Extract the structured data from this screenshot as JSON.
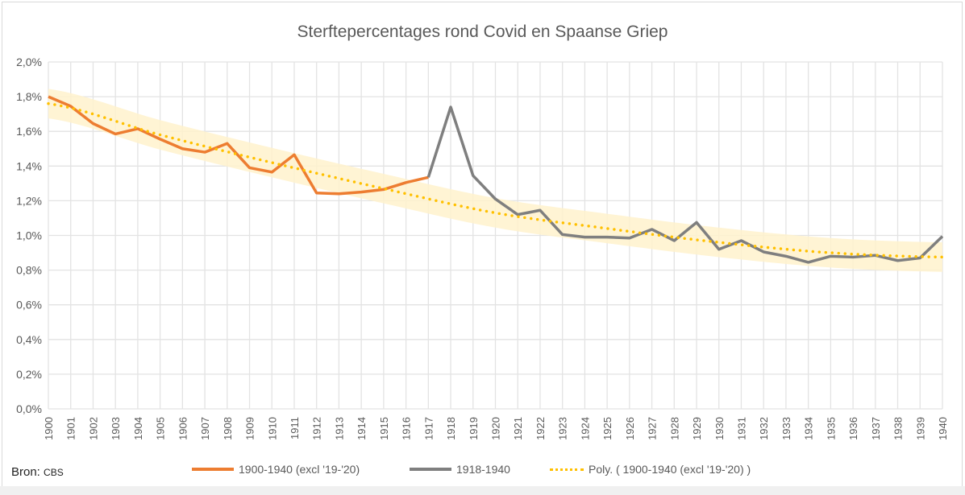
{
  "chart_data": {
    "type": "line",
    "title": "Sterftepercentages rond Covid en Spaanse Griep",
    "xlabel": "",
    "ylabel": "",
    "ylim": [
      0,
      2.0
    ],
    "yticks": [
      "0,0%",
      "0,2%",
      "0,4%",
      "0,6%",
      "0,8%",
      "1,0%",
      "1,2%",
      "1,4%",
      "1,6%",
      "1,8%",
      "2,0%"
    ],
    "x": [
      1900,
      1901,
      1902,
      1903,
      1904,
      1905,
      1906,
      1907,
      1908,
      1909,
      1910,
      1911,
      1912,
      1913,
      1914,
      1915,
      1916,
      1917,
      1918,
      1919,
      1920,
      1921,
      1922,
      1923,
      1924,
      1925,
      1926,
      1927,
      1928,
      1929,
      1930,
      1931,
      1932,
      1933,
      1934,
      1935,
      1936,
      1937,
      1938,
      1939,
      1940
    ],
    "grid": true,
    "legend_position": "bottom",
    "series": [
      {
        "name": "1900-1940 (excl '19-'20)",
        "color": "#ED7D31",
        "x": [
          1900,
          1901,
          1902,
          1903,
          1904,
          1905,
          1906,
          1907,
          1908,
          1909,
          1910,
          1911,
          1912,
          1913,
          1914,
          1915,
          1916,
          1917
        ],
        "values": [
          1.8,
          1.745,
          1.645,
          1.585,
          1.615,
          1.555,
          1.5,
          1.48,
          1.53,
          1.39,
          1.365,
          1.465,
          1.245,
          1.24,
          1.25,
          1.265,
          1.305,
          1.335
        ]
      },
      {
        "name": "1918-1940",
        "color": "#7F7F7F",
        "x": [
          1917,
          1918,
          1919,
          1920,
          1921,
          1922,
          1923,
          1924,
          1925,
          1926,
          1927,
          1928,
          1929,
          1930,
          1931,
          1932,
          1933,
          1934,
          1935,
          1936,
          1937,
          1938,
          1939,
          1940
        ],
        "values": [
          1.335,
          1.74,
          1.345,
          1.21,
          1.12,
          1.145,
          1.005,
          0.99,
          0.99,
          0.985,
          1.035,
          0.97,
          1.075,
          0.92,
          0.97,
          0.905,
          0.88,
          0.845,
          0.88,
          0.875,
          0.885,
          0.855,
          0.87,
          0.995
        ]
      },
      {
        "name": "Poly. ( 1900-1940 (excl '19-'20) )",
        "color": "#FFC000",
        "style": "dotted",
        "band_color": "#FFF2CC",
        "x": [
          1900,
          1905,
          1910,
          1915,
          1920,
          1925,
          1930,
          1935,
          1940
        ],
        "values": [
          1.76,
          1.58,
          1.42,
          1.27,
          1.13,
          1.04,
          0.96,
          0.9,
          0.875
        ]
      }
    ]
  },
  "source": {
    "label": "Bron:",
    "value": "CBS"
  }
}
